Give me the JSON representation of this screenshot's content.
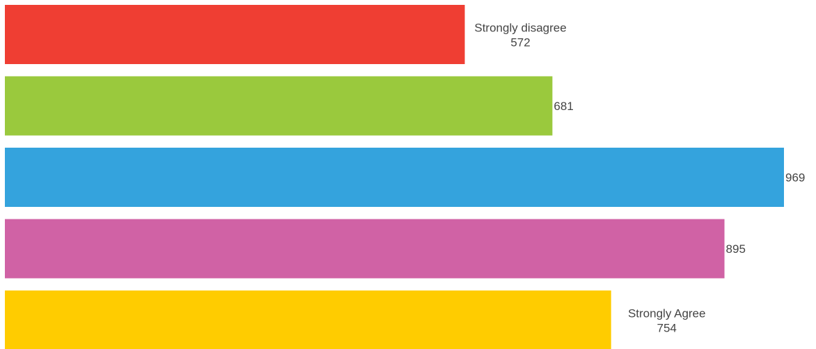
{
  "chart_data": {
    "type": "bar",
    "orientation": "horizontal",
    "categories": [
      "Strongly disagree",
      "",
      "",
      "",
      "Strongly Agree"
    ],
    "values": [
      572,
      681,
      969,
      895,
      754
    ],
    "colors": [
      "#ef3e33",
      "#9ac93d",
      "#34a3dd",
      "#d062a5",
      "#ffcc00"
    ],
    "title": "",
    "xlabel": "",
    "ylabel": "",
    "xlim": [
      0,
      969
    ],
    "grid": false,
    "legend": "none"
  }
}
